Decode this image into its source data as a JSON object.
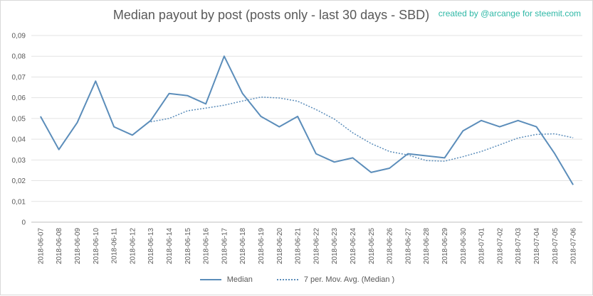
{
  "header": {
    "title": "Median payout by post (posts only - last 30 days - SBD)",
    "credit": "created by @arcange for steemit.com"
  },
  "chart_data": {
    "type": "line",
    "title": "Median payout by post (posts only - last 30 days - SBD)",
    "xlabel": "",
    "ylabel": "",
    "ylim": [
      0,
      0.09
    ],
    "yticks": [
      "0",
      "0,01",
      "0,02",
      "0,03",
      "0,04",
      "0,05",
      "0,06",
      "0,07",
      "0,08",
      "0,09"
    ],
    "grid": true,
    "legend_position": "bottom",
    "categories": [
      "2018-06-07",
      "2018-06-08",
      "2018-06-09",
      "2018-06-10",
      "2018-06-11",
      "2018-06-12",
      "2018-06-13",
      "2018-06-14",
      "2018-06-15",
      "2018-06-16",
      "2018-06-17",
      "2018-06-18",
      "2018-06-19",
      "2018-06-20",
      "2018-06-21",
      "2018-06-22",
      "2018-06-23",
      "2018-06-24",
      "2018-06-25",
      "2018-06-26",
      "2018-06-27",
      "2018-06-28",
      "2018-06-29",
      "2018-06-30",
      "2018-07-01",
      "2018-07-02",
      "2018-07-03",
      "2018-07-04",
      "2018-07-05",
      "2018-07-06"
    ],
    "series": [
      {
        "name": "Median",
        "style": "solid",
        "color": "#5b8dba",
        "values": [
          0.051,
          0.035,
          0.048,
          0.068,
          0.046,
          0.042,
          0.049,
          0.062,
          0.061,
          0.057,
          0.08,
          0.062,
          0.051,
          0.046,
          0.051,
          0.033,
          0.029,
          0.031,
          0.024,
          0.026,
          0.033,
          0.032,
          0.031,
          0.044,
          0.049,
          0.046,
          0.049,
          0.046,
          0.033,
          0.018
        ]
      },
      {
        "name": "7 per. Mov. Avg. (Median )",
        "style": "dotted",
        "color": "#5b8dba",
        "values": [
          null,
          null,
          null,
          null,
          null,
          null,
          0.0484,
          0.05,
          0.0537,
          0.055,
          0.0564,
          0.0584,
          0.0603,
          0.0599,
          0.0583,
          0.0543,
          0.0497,
          0.0431,
          0.0379,
          0.0341,
          0.0324,
          0.0297,
          0.0294,
          0.0316,
          0.0341,
          0.0373,
          0.0406,
          0.0423,
          0.0426,
          0.0407
        ]
      }
    ]
  }
}
